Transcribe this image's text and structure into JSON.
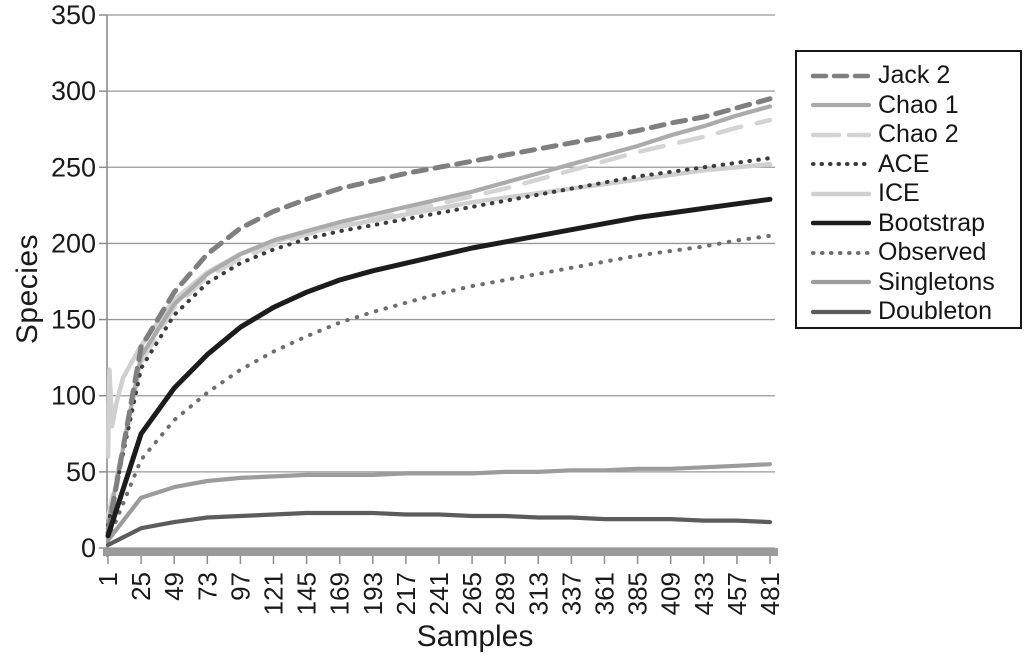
{
  "chart_data": {
    "type": "line",
    "title": "",
    "xlabel": "Samples",
    "ylabel": "Species",
    "ylim": [
      0,
      350
    ],
    "yticks": [
      0,
      50,
      100,
      150,
      200,
      250,
      300,
      350
    ],
    "xlim": [
      1,
      481
    ],
    "grid": "horizontal-only",
    "legend_position": "top-right",
    "colors": {
      "gridline": "#999999",
      "axis_line": "#8c8c8c",
      "zero_band": "#9a9a9a",
      "text": "#1a1a1a",
      "legend_border": "#161616",
      "background": "#ffffff"
    },
    "categories": [
      1,
      25,
      49,
      73,
      97,
      121,
      145,
      169,
      193,
      217,
      241,
      265,
      289,
      313,
      337,
      361,
      385,
      409,
      433,
      457,
      481
    ],
    "series": [
      {
        "name": "Jack 2",
        "color": "#7f7f7f",
        "width": 5,
        "dash": "13 9",
        "legend_dash": "13 8",
        "values": [
          10,
          132,
          168,
          193,
          210,
          221,
          229,
          236,
          241,
          246,
          250,
          254,
          258,
          262,
          266,
          270,
          274,
          279,
          283,
          289,
          295
        ]
      },
      {
        "name": "Chao 1",
        "color": "#ababab",
        "width": 4.2,
        "dash": "",
        "legend_dash": "",
        "values": [
          15,
          126,
          160,
          180,
          193,
          202,
          208,
          214,
          219,
          224,
          229,
          234,
          240,
          246,
          252,
          258,
          264,
          271,
          277,
          284,
          290
        ]
      },
      {
        "name": "Chao 2",
        "color": "#d4d4d4",
        "width": 4.5,
        "dash": "24 16",
        "legend_dash": "26 10 6 2",
        "values": [
          20,
          122,
          158,
          178,
          190,
          199,
          206,
          211,
          216,
          221,
          226,
          231,
          236,
          242,
          248,
          254,
          260,
          265,
          270,
          276,
          281
        ]
      },
      {
        "name": "ACE",
        "color": "#3d3d3d",
        "width": 4,
        "dash": "0.5 8.5",
        "legend_dash": "0.5 8",
        "values": [
          15,
          118,
          153,
          174,
          187,
          196,
          203,
          208,
          212,
          216,
          220,
          224,
          228,
          232,
          236,
          240,
          244,
          247,
          250,
          253,
          256
        ]
      },
      {
        "name": "ICE",
        "color": "#d0d0d0",
        "width": 4.5,
        "dash": "",
        "legend_dash": "",
        "x": [
          1,
          2,
          4,
          7,
          12,
          25,
          49,
          73,
          97,
          121,
          145,
          169,
          193,
          217,
          241,
          265,
          289,
          313,
          337,
          361,
          385,
          409,
          433,
          457,
          481
        ],
        "values": [
          60,
          117,
          80,
          95,
          112,
          133,
          163,
          181,
          193,
          201,
          207,
          211,
          215,
          219,
          223,
          227,
          230,
          233,
          236,
          239,
          242,
          245,
          248,
          250,
          252
        ]
      },
      {
        "name": "Bootstrap",
        "color": "#1c1c1c",
        "width": 5,
        "dash": "",
        "legend_dash": "",
        "values": [
          8,
          75,
          105,
          127,
          145,
          158,
          168,
          176,
          182,
          187,
          192,
          197,
          201,
          205,
          209,
          213,
          217,
          220,
          223,
          226,
          229
        ]
      },
      {
        "name": "Observed",
        "color": "#6e6e6e",
        "width": 4,
        "dash": "0.5 9.5",
        "legend_dash": "0.5 8.5",
        "values": [
          5,
          58,
          84,
          102,
          117,
          129,
          139,
          148,
          155,
          161,
          167,
          172,
          176,
          180,
          184,
          188,
          192,
          195,
          198,
          202,
          205
        ]
      },
      {
        "name": "Singletons",
        "color": "#9c9c9c",
        "width": 4.2,
        "dash": "",
        "legend_dash": "",
        "values": [
          5,
          33,
          40,
          44,
          46,
          47,
          48,
          48,
          48,
          49,
          49,
          49,
          50,
          50,
          51,
          51,
          52,
          52,
          53,
          54,
          55
        ]
      },
      {
        "name": "Doubleton",
        "color": "#5c5c5c",
        "width": 4.2,
        "dash": "",
        "legend_dash": "",
        "values": [
          2,
          13,
          17,
          20,
          21,
          22,
          23,
          23,
          23,
          22,
          22,
          21,
          21,
          20,
          20,
          19,
          19,
          19,
          18,
          18,
          17
        ]
      }
    ]
  }
}
